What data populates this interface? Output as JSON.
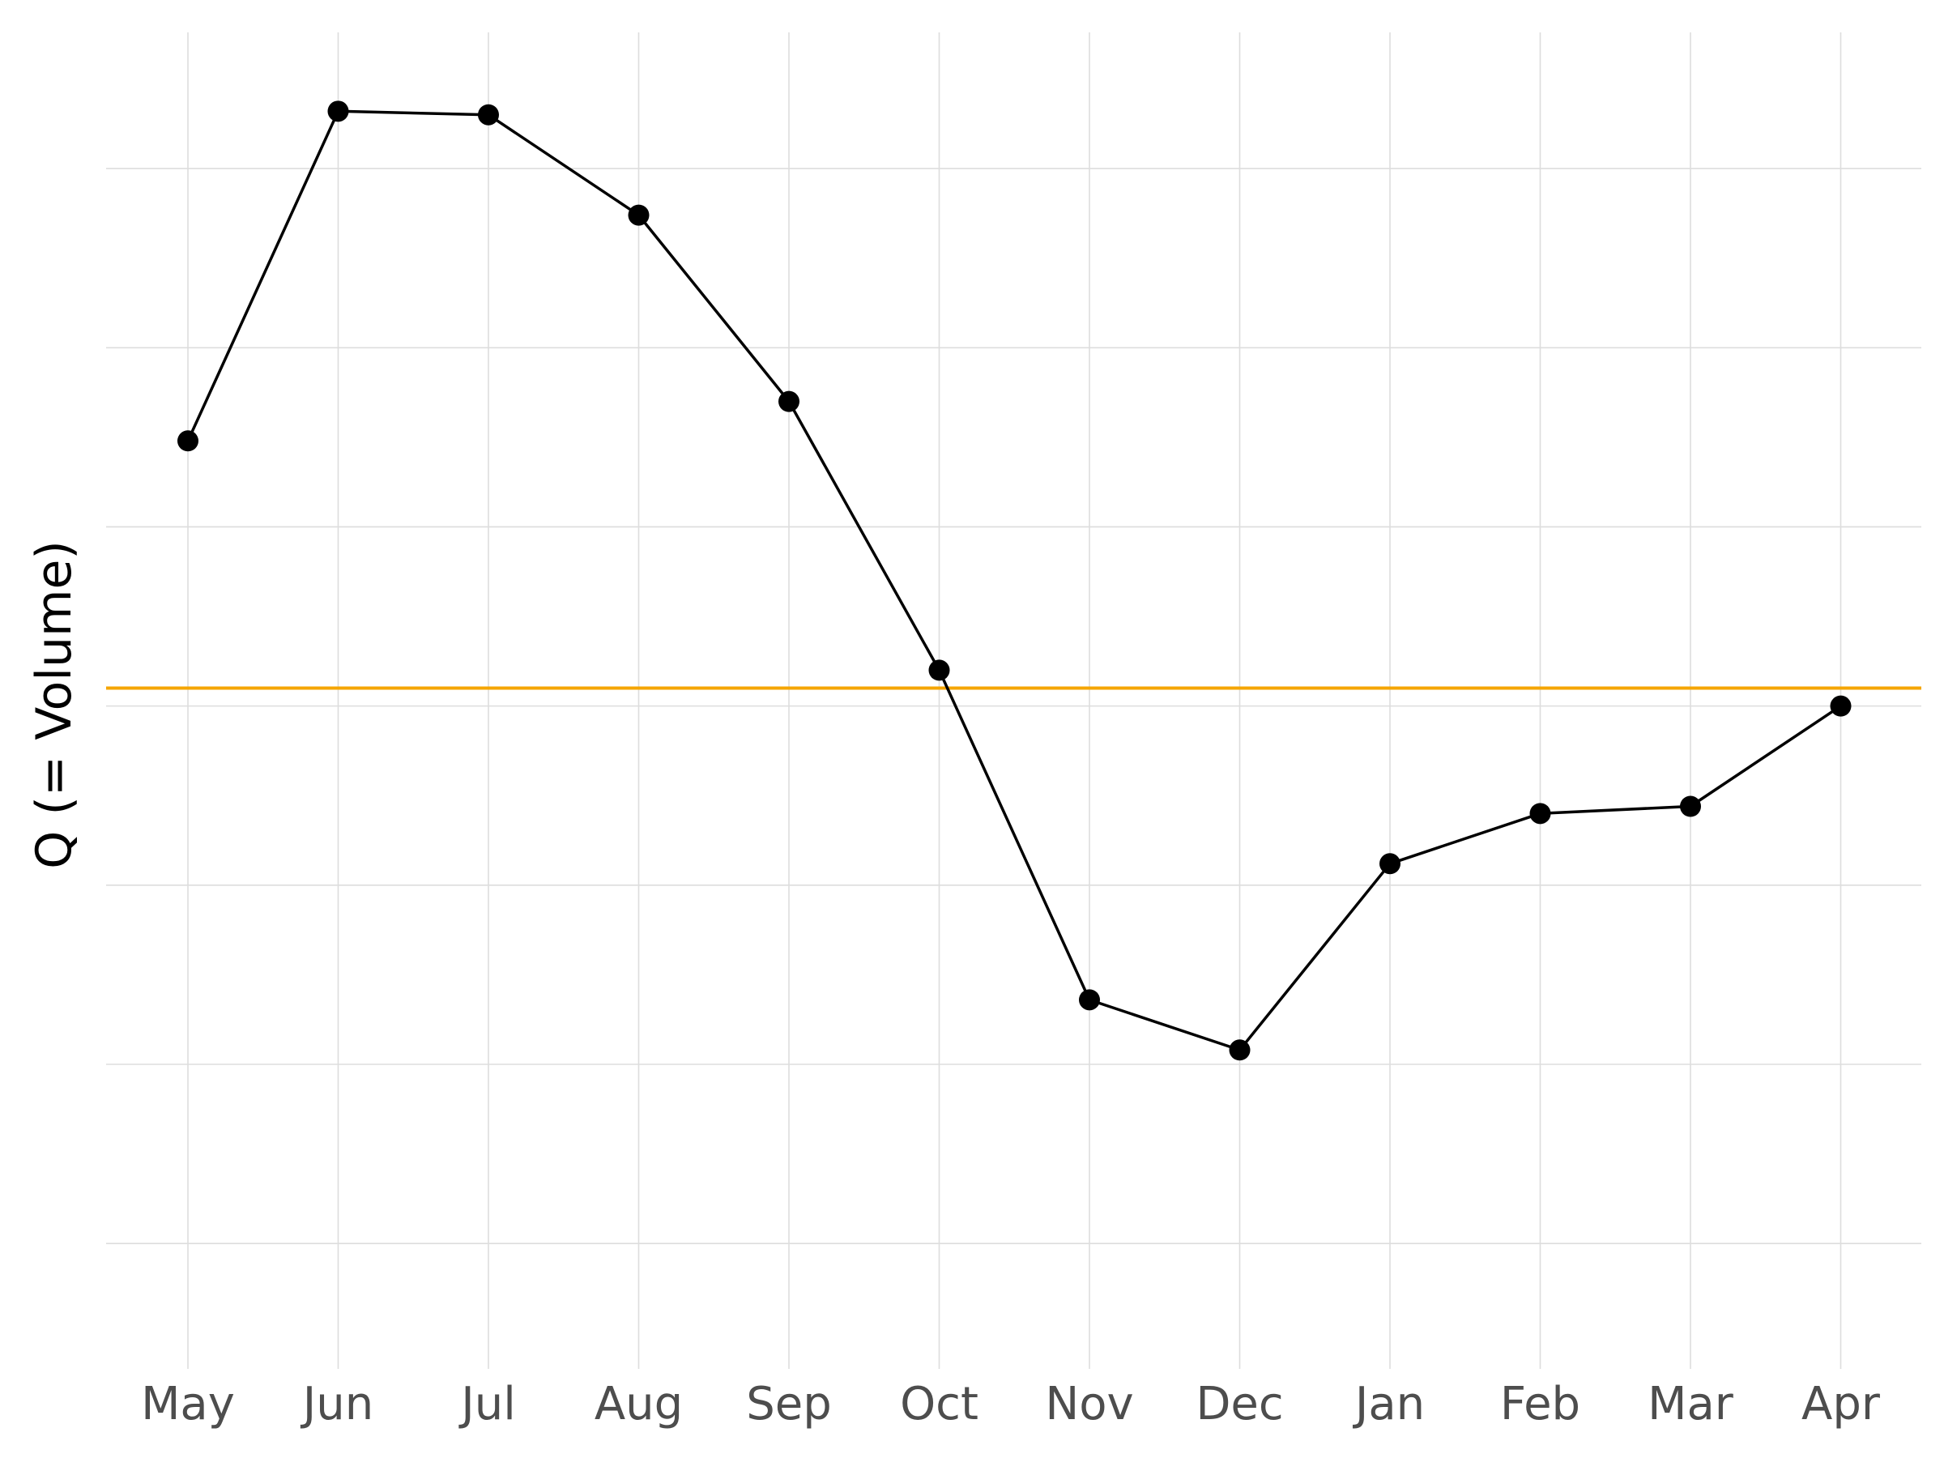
{
  "chart_data": {
    "type": "line",
    "categories": [
      "May",
      "Jun",
      "Jul",
      "Aug",
      "Sep",
      "Oct",
      "Nov",
      "Dec",
      "Jan",
      "Feb",
      "Mar",
      "Apr"
    ],
    "series": [
      {
        "values": [
          0.74,
          1.66,
          1.65,
          1.37,
          0.85,
          0.1,
          -0.82,
          -0.96,
          -0.44,
          -0.3,
          -0.28,
          0.0
        ]
      }
    ],
    "reference_line": {
      "value": 0.05,
      "color": "#F5A500"
    },
    "xlabel": "",
    "ylabel": "Q (= Volume)",
    "ylim": [
      -1.85,
      1.88
    ],
    "y_gridlines": [
      -1.5,
      -1.0,
      -0.5,
      0.0,
      0.5,
      1.0,
      1.5
    ],
    "grid": true,
    "colors": {
      "line": "#000000",
      "points": "#000000",
      "grid": "#DDDDDD",
      "tick_text": "#4D4D4D"
    }
  }
}
